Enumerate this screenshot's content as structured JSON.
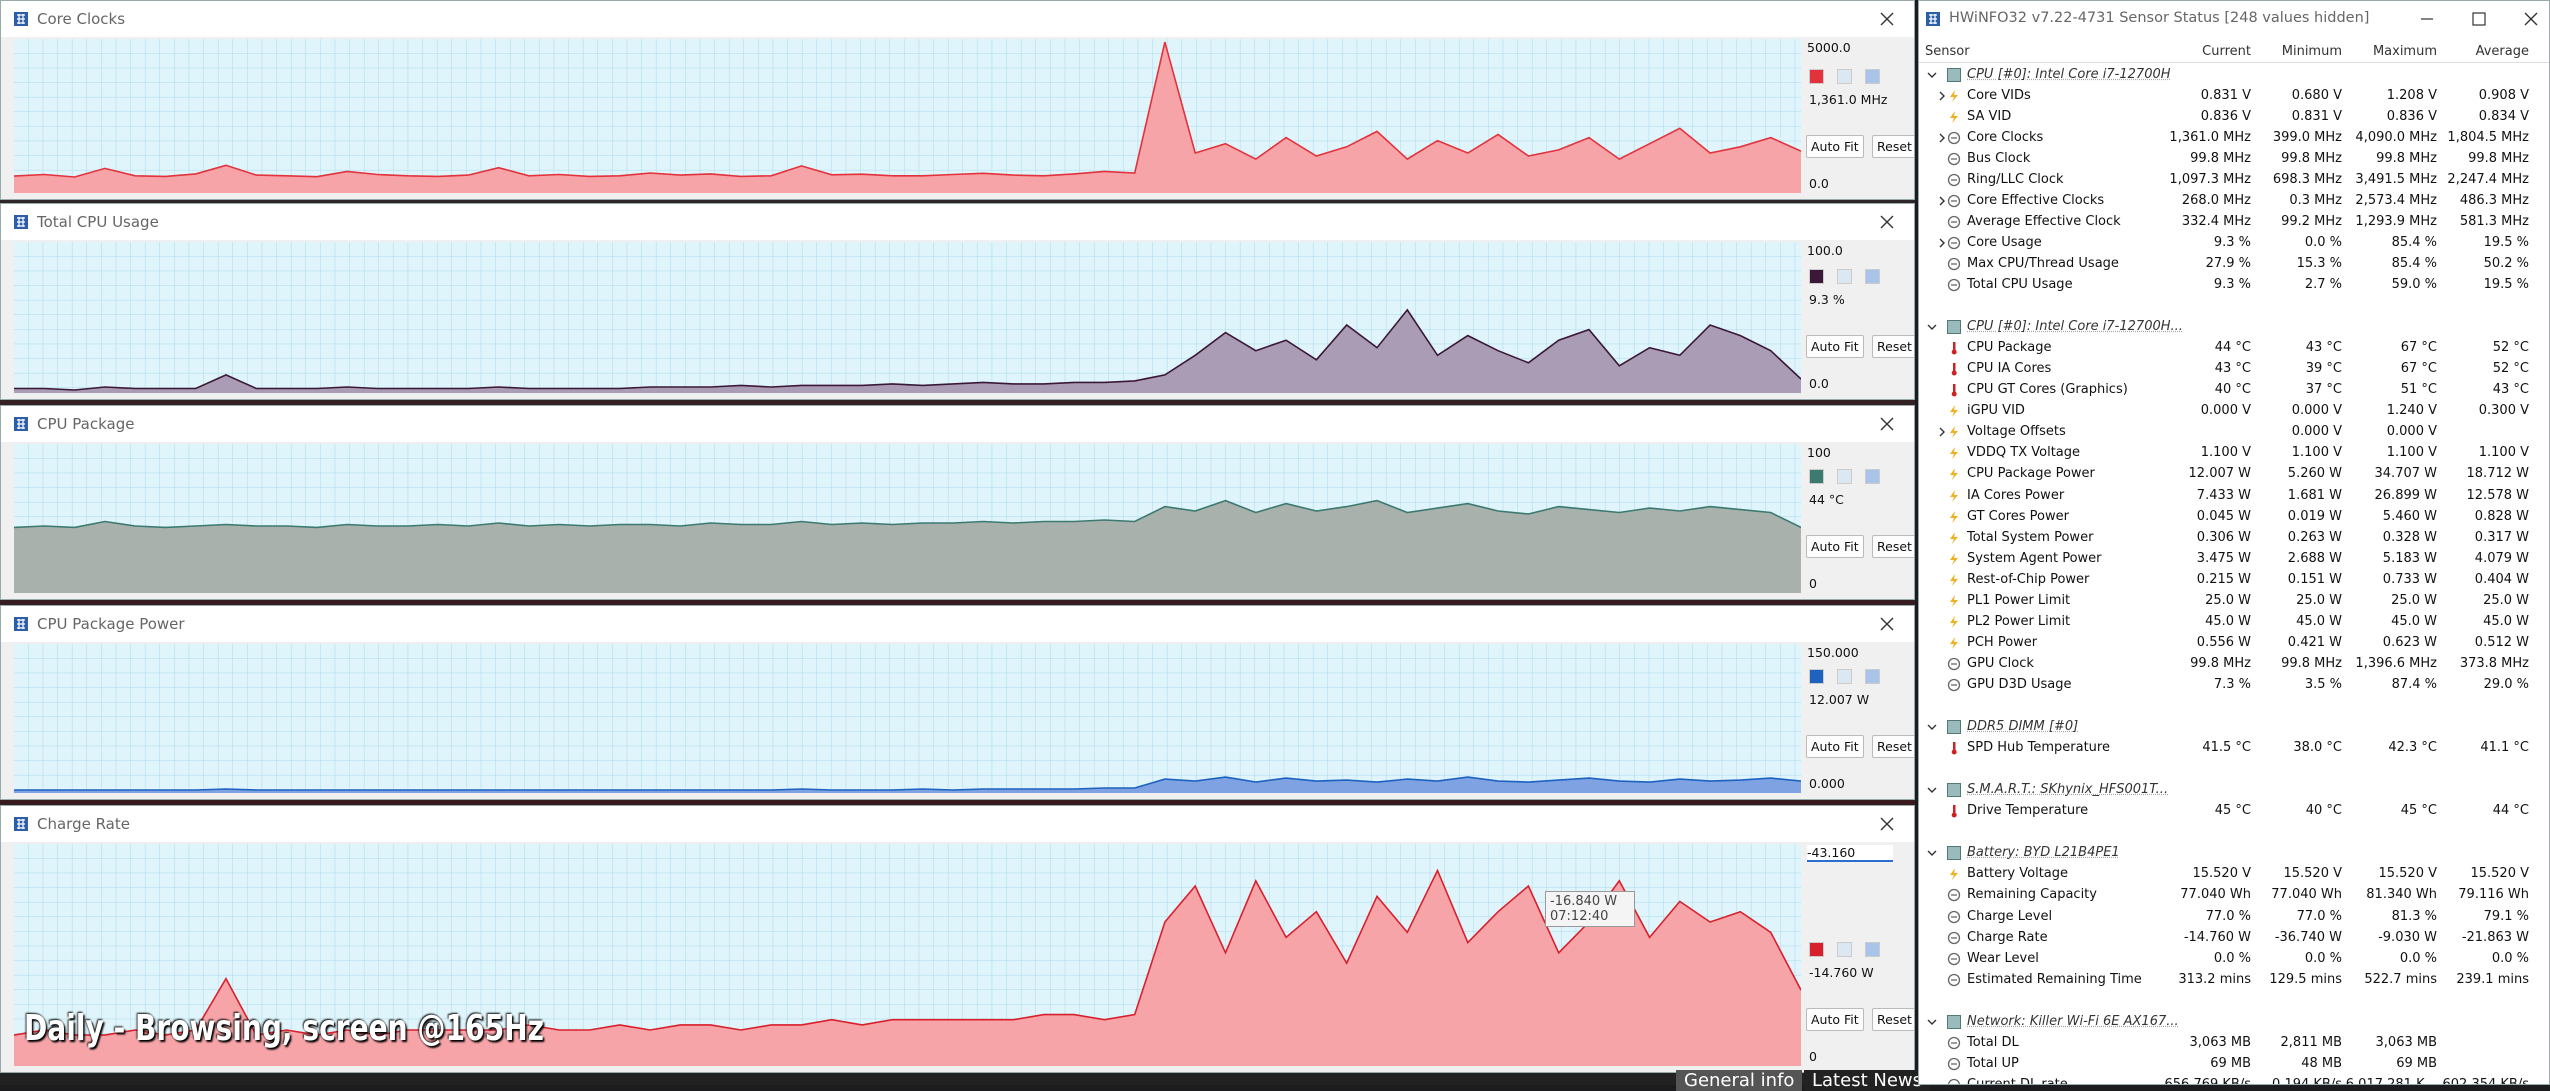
{
  "graphs": [
    {
      "title": "Core Clocks",
      "color": "#e2323c",
      "fill": "#f6a4a8",
      "max": {
        "value": 5000,
        "label": "5000.0"
      },
      "current": "1,361.0 MHz",
      "min": {
        "value": 0,
        "label": "0.0"
      },
      "buttons": [
        "Auto Fit",
        "Reset"
      ],
      "trace": [
        550,
        600,
        520,
        800,
        560,
        540,
        620,
        900,
        580,
        560,
        530,
        700,
        600,
        560,
        540,
        580,
        820,
        560,
        600,
        540,
        560,
        650,
        580,
        620,
        540,
        560,
        880,
        590,
        610,
        560,
        560,
        600,
        640,
        580,
        560,
        620,
        700,
        650,
        4900,
        1300,
        1600,
        1100,
        1800,
        1200,
        1500,
        2000,
        1100,
        1700,
        1300,
        1900,
        1200,
        1400,
        1800,
        1100,
        1600,
        2100,
        1300,
        1500,
        1800,
        1361
      ]
    },
    {
      "title": "Total CPU Usage",
      "color": "#3c1838",
      "fill": "#aa9cb4",
      "max": {
        "value": 100,
        "label": "100.0"
      },
      "current": "9.3 %",
      "min": {
        "value": 0,
        "label": "0.0"
      },
      "buttons": [
        "Auto Fit",
        "Reset"
      ],
      "trace": [
        3,
        3,
        2,
        4,
        3,
        3,
        3,
        12,
        3,
        3,
        3,
        4,
        3,
        3,
        3,
        3,
        4,
        3,
        3,
        3,
        3,
        4,
        4,
        4,
        5,
        4,
        5,
        5,
        5,
        6,
        5,
        6,
        7,
        6,
        6,
        7,
        7,
        8,
        12,
        25,
        40,
        28,
        35,
        22,
        45,
        30,
        55,
        25,
        38,
        28,
        20,
        35,
        42,
        18,
        30,
        25,
        45,
        38,
        28,
        9.3
      ]
    },
    {
      "title": "CPU Package",
      "color": "#3c7a70",
      "fill": "#a9b1ad",
      "max": {
        "value": 100,
        "label": "100"
      },
      "current": "44 °C",
      "min": {
        "value": 0,
        "label": "0"
      },
      "buttons": [
        "Auto Fit",
        "Reset"
      ],
      "trace": [
        44,
        45,
        44,
        48,
        45,
        44,
        45,
        46,
        45,
        45,
        44,
        46,
        45,
        45,
        46,
        45,
        47,
        45,
        46,
        45,
        46,
        46,
        45,
        47,
        46,
        46,
        48,
        46,
        47,
        46,
        47,
        47,
        48,
        47,
        48,
        48,
        49,
        48,
        58,
        55,
        62,
        54,
        60,
        55,
        58,
        62,
        54,
        57,
        60,
        55,
        53,
        58,
        56,
        54,
        57,
        55,
        58,
        56,
        54,
        44
      ]
    },
    {
      "title": "CPU Package Power",
      "color": "#1e62c0",
      "fill": "#7ea2e2",
      "max": {
        "value": 150,
        "label": "150.000"
      },
      "current": "12.007 W",
      "min": {
        "value": 0,
        "label": "0.000"
      },
      "buttons": [
        "Auto Fit",
        "Reset"
      ],
      "trace": [
        3,
        3,
        3,
        3,
        3,
        3,
        3,
        4,
        3,
        3,
        3,
        3,
        3,
        3,
        3,
        3,
        3,
        3,
        3,
        3,
        3,
        3,
        3,
        3,
        3,
        3,
        4,
        3,
        3,
        3,
        4,
        3,
        4,
        4,
        4,
        4,
        5,
        5,
        14,
        12,
        16,
        11,
        15,
        12,
        13,
        11,
        14,
        12,
        16,
        12,
        11,
        13,
        15,
        12,
        11,
        14,
        12,
        13,
        15,
        12.007
      ]
    },
    {
      "title": "Charge Rate",
      "color": "#d8202c",
      "fill": "#f6a4a8",
      "max": {
        "value": -43.16,
        "label": "-43.160"
      },
      "current": "-14.760 W",
      "min": {
        "value": 0,
        "label": "0"
      },
      "buttons": [
        "Auto Fit",
        "Reset"
      ],
      "trace": [
        -6,
        -7,
        -6,
        -6,
        -7,
        -6,
        -7,
        -17,
        -6,
        -7,
        -6,
        -7,
        -6,
        -7,
        -7,
        -7,
        -7,
        -8,
        -7,
        -7,
        -8,
        -7,
        -8,
        -8,
        -7,
        -8,
        -8,
        -9,
        -8,
        -9,
        -9,
        -9,
        -9,
        -9,
        -10,
        -10,
        -9,
        -10,
        -28,
        -35,
        -22,
        -36,
        -25,
        -30,
        -20,
        -33,
        -26,
        -38,
        -24,
        -30,
        -35,
        -22,
        -28,
        -36,
        -25,
        -32,
        -28,
        -30,
        -26,
        -14.76
      ]
    }
  ],
  "tooltip": {
    "value": "-16.840 W",
    "time": "07:12:40"
  },
  "caption": "Daily - Browsing, screen @165Hz",
  "background": {
    "tabs": [
      "General info",
      "Latest News"
    ]
  },
  "sensor_window": {
    "title": "HWiNFO32 v7.22-4731 Sensor Status [248 values hidden]",
    "columns": [
      "Sensor",
      "Current",
      "Minimum",
      "Maximum",
      "Average"
    ],
    "groups": [
      {
        "title": "CPU [#0]: Intel Core i7-12700H",
        "rows": [
          {
            "label": "Core VIDs",
            "icon": "bolt",
            "expandable": true,
            "current": "0.831 V",
            "minimum": "0.680 V",
            "maximum": "1.208 V",
            "average": "0.908 V"
          },
          {
            "label": "SA VID",
            "icon": "bolt",
            "current": "0.836 V",
            "minimum": "0.831 V",
            "maximum": "0.836 V",
            "average": "0.834 V"
          },
          {
            "label": "Core Clocks",
            "icon": "dial",
            "expandable": true,
            "current": "1,361.0 MHz",
            "minimum": "399.0 MHz",
            "maximum": "4,090.0 MHz",
            "average": "1,804.5 MHz"
          },
          {
            "label": "Bus Clock",
            "icon": "dial",
            "current": "99.8 MHz",
            "minimum": "99.8 MHz",
            "maximum": "99.8 MHz",
            "average": "99.8 MHz"
          },
          {
            "label": "Ring/LLC Clock",
            "icon": "dial",
            "current": "1,097.3 MHz",
            "minimum": "698.3 MHz",
            "maximum": "3,491.5 MHz",
            "average": "2,247.4 MHz"
          },
          {
            "label": "Core Effective Clocks",
            "icon": "dial",
            "expandable": true,
            "current": "268.0 MHz",
            "minimum": "0.3 MHz",
            "maximum": "2,573.4 MHz",
            "average": "486.3 MHz"
          },
          {
            "label": "Average Effective Clock",
            "icon": "dial",
            "current": "332.4 MHz",
            "minimum": "99.2 MHz",
            "maximum": "1,293.9 MHz",
            "average": "581.3 MHz"
          },
          {
            "label": "Core Usage",
            "icon": "dial",
            "expandable": true,
            "current": "9.3 %",
            "minimum": "0.0 %",
            "maximum": "85.4 %",
            "average": "19.5 %"
          },
          {
            "label": "Max CPU/Thread Usage",
            "icon": "dial",
            "current": "27.9 %",
            "minimum": "15.3 %",
            "maximum": "85.4 %",
            "average": "50.2 %"
          },
          {
            "label": "Total CPU Usage",
            "icon": "dial",
            "current": "9.3 %",
            "minimum": "2.7 %",
            "maximum": "59.0 %",
            "average": "19.5 %"
          }
        ]
      },
      {
        "title": "CPU [#0]: Intel Core i7-12700H...",
        "rows": [
          {
            "label": "CPU Package",
            "icon": "therm",
            "current": "44 °C",
            "minimum": "43 °C",
            "maximum": "67 °C",
            "average": "52 °C"
          },
          {
            "label": "CPU IA Cores",
            "icon": "therm",
            "current": "43 °C",
            "minimum": "39 °C",
            "maximum": "67 °C",
            "average": "52 °C"
          },
          {
            "label": "CPU GT Cores (Graphics)",
            "icon": "therm",
            "current": "40 °C",
            "minimum": "37 °C",
            "maximum": "51 °C",
            "average": "43 °C"
          },
          {
            "label": "iGPU VID",
            "icon": "bolt",
            "current": "0.000 V",
            "minimum": "0.000 V",
            "maximum": "1.240 V",
            "average": "0.300 V"
          },
          {
            "label": "Voltage Offsets",
            "icon": "bolt",
            "expandable": true,
            "minimum": "0.000 V",
            "maximum": "0.000 V"
          },
          {
            "label": "VDDQ TX Voltage",
            "icon": "bolt",
            "current": "1.100 V",
            "minimum": "1.100 V",
            "maximum": "1.100 V",
            "average": "1.100 V"
          },
          {
            "label": "CPU Package Power",
            "icon": "bolt",
            "current": "12.007 W",
            "minimum": "5.260 W",
            "maximum": "34.707 W",
            "average": "18.712 W"
          },
          {
            "label": "IA Cores Power",
            "icon": "bolt",
            "current": "7.433 W",
            "minimum": "1.681 W",
            "maximum": "26.899 W",
            "average": "12.578 W"
          },
          {
            "label": "GT Cores Power",
            "icon": "bolt",
            "current": "0.045 W",
            "minimum": "0.019 W",
            "maximum": "5.460 W",
            "average": "0.828 W"
          },
          {
            "label": "Total System Power",
            "icon": "bolt",
            "current": "0.306 W",
            "minimum": "0.263 W",
            "maximum": "0.328 W",
            "average": "0.317 W"
          },
          {
            "label": "System Agent Power",
            "icon": "bolt",
            "current": "3.475 W",
            "minimum": "2.688 W",
            "maximum": "5.183 W",
            "average": "4.079 W"
          },
          {
            "label": "Rest-of-Chip Power",
            "icon": "bolt",
            "current": "0.215 W",
            "minimum": "0.151 W",
            "maximum": "0.733 W",
            "average": "0.404 W"
          },
          {
            "label": "PL1 Power Limit",
            "icon": "bolt",
            "current": "25.0 W",
            "minimum": "25.0 W",
            "maximum": "25.0 W",
            "average": "25.0 W"
          },
          {
            "label": "PL2 Power Limit",
            "icon": "bolt",
            "current": "45.0 W",
            "minimum": "45.0 W",
            "maximum": "45.0 W",
            "average": "45.0 W"
          },
          {
            "label": "PCH Power",
            "icon": "bolt",
            "current": "0.556 W",
            "minimum": "0.421 W",
            "maximum": "0.623 W",
            "average": "0.512 W"
          },
          {
            "label": "GPU Clock",
            "icon": "dial",
            "current": "99.8 MHz",
            "minimum": "99.8 MHz",
            "maximum": "1,396.6 MHz",
            "average": "373.8 MHz"
          },
          {
            "label": "GPU D3D Usage",
            "icon": "dial",
            "current": "7.3 %",
            "minimum": "3.5 %",
            "maximum": "87.4 %",
            "average": "29.0 %"
          }
        ]
      },
      {
        "title": "DDR5 DIMM [#0]",
        "rows": [
          {
            "label": "SPD Hub Temperature",
            "icon": "therm",
            "current": "41.5 °C",
            "minimum": "38.0 °C",
            "maximum": "42.3 °C",
            "average": "41.1 °C"
          }
        ]
      },
      {
        "title": "S.M.A.R.T.: SKhynix_HFS001T...",
        "rows": [
          {
            "label": "Drive Temperature",
            "icon": "therm",
            "current": "45 °C",
            "minimum": "40 °C",
            "maximum": "45 °C",
            "average": "44 °C"
          }
        ]
      },
      {
        "title": "Battery: BYD L21B4PE1",
        "rows": [
          {
            "label": "Battery Voltage",
            "icon": "bolt",
            "current": "15.520 V",
            "minimum": "15.520 V",
            "maximum": "15.520 V",
            "average": "15.520 V"
          },
          {
            "label": "Remaining Capacity",
            "icon": "dial",
            "current": "77.040 Wh",
            "minimum": "77.040 Wh",
            "maximum": "81.340 Wh",
            "average": "79.116 Wh"
          },
          {
            "label": "Charge Level",
            "icon": "dial",
            "current": "77.0 %",
            "minimum": "77.0 %",
            "maximum": "81.3 %",
            "average": "79.1 %"
          },
          {
            "label": "Charge Rate",
            "icon": "dial",
            "current": "-14.760 W",
            "minimum": "-36.740 W",
            "maximum": "-9.030 W",
            "average": "-21.863 W"
          },
          {
            "label": "Wear Level",
            "icon": "dial",
            "current": "0.0 %",
            "minimum": "0.0 %",
            "maximum": "0.0 %",
            "average": "0.0 %"
          },
          {
            "label": "Estimated Remaining Time",
            "icon": "dial",
            "current": "313.2 mins",
            "minimum": "129.5 mins",
            "maximum": "522.7 mins",
            "average": "239.1 mins"
          }
        ]
      },
      {
        "title": "Network: Killer Wi-Fi 6E AX167...",
        "rows": [
          {
            "label": "Total DL",
            "icon": "dial",
            "current": "3,063 MB",
            "minimum": "2,811 MB",
            "maximum": "3,063 MB"
          },
          {
            "label": "Total UP",
            "icon": "dial",
            "current": "69 MB",
            "minimum": "48 MB",
            "maximum": "69 MB"
          },
          {
            "label": "Current DL rate",
            "icon": "dial",
            "current": "656.769 KB/s",
            "minimum": "0.194 KB/s",
            "maximum": "6,017.281 K...",
            "average": "602.354 KB/s"
          }
        ]
      }
    ]
  }
}
